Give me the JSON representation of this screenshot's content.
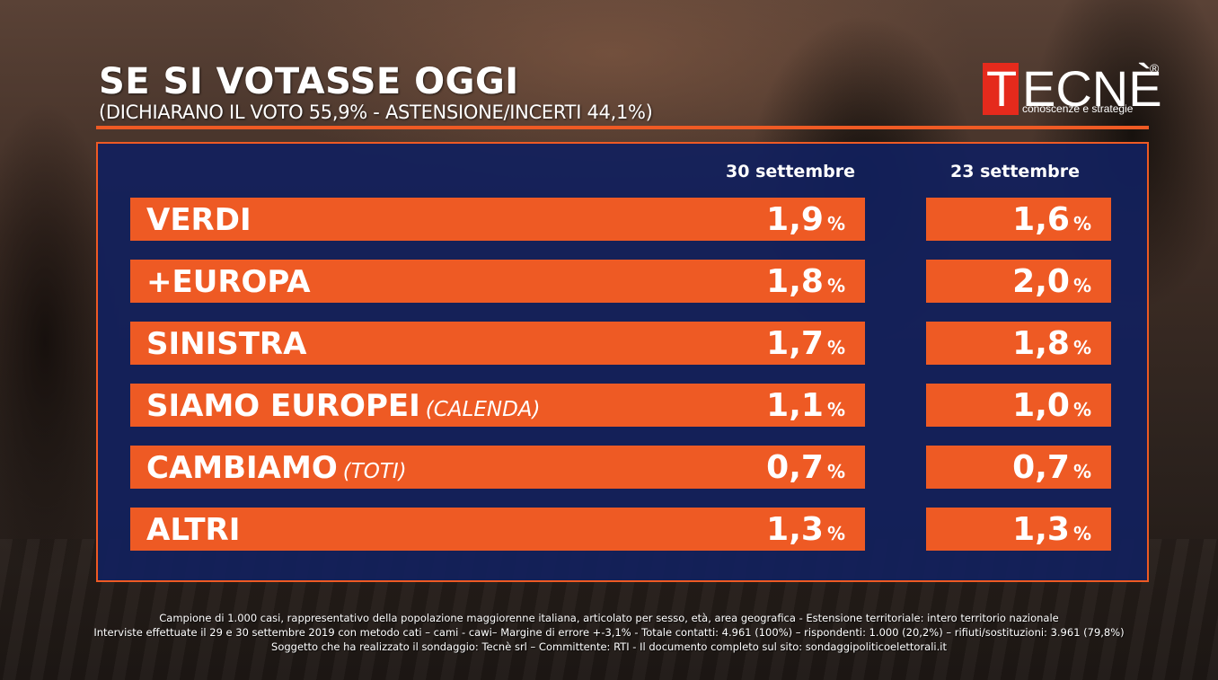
{
  "header": {
    "title": "SE SI VOTASSE OGGI",
    "subtitle": "(DICHIARANO IL VOTO 55,9% - ASTENSIONE/INCERTI 44,1%)"
  },
  "logo": {
    "brand_initial": "T",
    "brand_rest": "ECNÈ",
    "registered": "®",
    "tagline": "conoscenze e strategie"
  },
  "chart_data": {
    "type": "table",
    "unit": "%",
    "columns": [
      "30 settembre",
      "23 settembre"
    ],
    "rows": [
      {
        "party": "VERDI",
        "note": "",
        "current": "1,9",
        "previous": "1,6"
      },
      {
        "party": "+EUROPA",
        "note": "",
        "current": "1,8",
        "previous": "2,0"
      },
      {
        "party": "SINISTRA",
        "note": "",
        "current": "1,7",
        "previous": "1,8"
      },
      {
        "party": "SIAMO EUROPEI",
        "note": "(CALENDA)",
        "current": "1,1",
        "previous": "1,0"
      },
      {
        "party": "CAMBIAMO",
        "note": "(TOTI)",
        "current": "0,7",
        "previous": "0,7"
      },
      {
        "party": "ALTRI",
        "note": "",
        "current": "1,3",
        "previous": "1,3"
      }
    ],
    "colors": {
      "bar": "#ee5a24",
      "panel": "#12205c",
      "text": "#ffffff"
    }
  },
  "footer": {
    "line1": "Campione di 1.000 casi, rappresentativo della popolazione maggiorenne italiana, articolato per sesso, età, area geografica - Estensione territoriale: intero territorio nazionale",
    "line2": "Interviste effettuate il 29 e 30 settembre 2019 con metodo cati – cami - cawi– Margine di errore +-3,1%  - Totale contatti: 4.961 (100%) – rispondenti:  1.000 (20,2%) – rifiuti/sostituzioni: 3.961 (79,8%)",
    "line3": "Soggetto che ha realizzato il sondaggio: Tecnè srl – Committente: RTI - Il documento completo sul sito: sondaggipoliticoelettorali.it"
  }
}
